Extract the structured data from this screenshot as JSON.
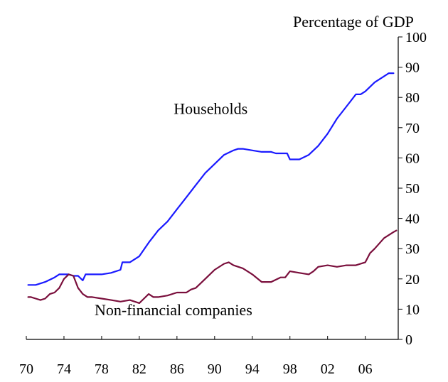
{
  "chart_data": {
    "type": "line",
    "title": "",
    "ylabel": "Percentage of GDP",
    "xlabel": "",
    "ylim": [
      0,
      100
    ],
    "y_ticks": [
      0,
      10,
      20,
      30,
      40,
      50,
      60,
      70,
      80,
      90,
      100
    ],
    "y_axis_side": "right",
    "x_range": [
      1970,
      2009.5
    ],
    "x_ticks": [
      {
        "year": 1970,
        "label": "70"
      },
      {
        "year": 1974,
        "label": "74"
      },
      {
        "year": 1978,
        "label": "78"
      },
      {
        "year": 1982,
        "label": "82"
      },
      {
        "year": 1986,
        "label": "86"
      },
      {
        "year": 1990,
        "label": "90"
      },
      {
        "year": 1994,
        "label": "94"
      },
      {
        "year": 1998,
        "label": "98"
      },
      {
        "year": 2002,
        "label": "02"
      },
      {
        "year": 2006,
        "label": "06"
      }
    ],
    "grid": false,
    "series": [
      {
        "name": "Households",
        "color": "#1a1aff",
        "points": [
          [
            1970.2,
            18
          ],
          [
            1971,
            18
          ],
          [
            1972,
            19
          ],
          [
            1973,
            20.5
          ],
          [
            1973.5,
            21.5
          ],
          [
            1974.5,
            21.5
          ],
          [
            1975,
            21
          ],
          [
            1975.5,
            21
          ],
          [
            1976,
            19.5
          ],
          [
            1976.3,
            21.5
          ],
          [
            1977,
            21.5
          ],
          [
            1978,
            21.5
          ],
          [
            1979,
            22
          ],
          [
            1980,
            23
          ],
          [
            1980.2,
            25.5
          ],
          [
            1981,
            25.5
          ],
          [
            1982,
            27.5
          ],
          [
            1983,
            32
          ],
          [
            1984,
            36
          ],
          [
            1985,
            39
          ],
          [
            1986,
            43
          ],
          [
            1987,
            47
          ],
          [
            1988,
            51
          ],
          [
            1989,
            55
          ],
          [
            1990,
            58
          ],
          [
            1991,
            61
          ],
          [
            1992,
            62.5
          ],
          [
            1992.5,
            63
          ],
          [
            1993,
            63
          ],
          [
            1994,
            62.5
          ],
          [
            1995,
            62
          ],
          [
            1996,
            62
          ],
          [
            1996.5,
            61.5
          ],
          [
            1997,
            61.5
          ],
          [
            1997.7,
            61.5
          ],
          [
            1998,
            59.5
          ],
          [
            1999,
            59.5
          ],
          [
            2000,
            61
          ],
          [
            2001,
            64
          ],
          [
            2002,
            68
          ],
          [
            2003,
            73
          ],
          [
            2004,
            77
          ],
          [
            2005,
            81
          ],
          [
            2005.5,
            81
          ],
          [
            2006,
            82
          ],
          [
            2007,
            85
          ],
          [
            2008,
            87
          ],
          [
            2008.5,
            88
          ],
          [
            2009,
            88
          ]
        ]
      },
      {
        "name": "Non-financial companies",
        "color": "#7a0f3c",
        "points": [
          [
            1970.2,
            14
          ],
          [
            1970.5,
            14
          ],
          [
            1971,
            13.5
          ],
          [
            1971.5,
            13
          ],
          [
            1972,
            13.5
          ],
          [
            1972.5,
            15
          ],
          [
            1973,
            15.5
          ],
          [
            1973.5,
            17
          ],
          [
            1974,
            20
          ],
          [
            1974.5,
            21.5
          ],
          [
            1975,
            21
          ],
          [
            1975.5,
            17
          ],
          [
            1976,
            15
          ],
          [
            1976.5,
            14
          ],
          [
            1977,
            14
          ],
          [
            1978,
            13.5
          ],
          [
            1979,
            13
          ],
          [
            1980,
            12.5
          ],
          [
            1981,
            13
          ],
          [
            1982,
            12
          ],
          [
            1982.5,
            13.5
          ],
          [
            1983,
            15
          ],
          [
            1983.5,
            14
          ],
          [
            1984,
            14
          ],
          [
            1985,
            14.5
          ],
          [
            1986,
            15.5
          ],
          [
            1987,
            15.5
          ],
          [
            1987.5,
            16.5
          ],
          [
            1988,
            17
          ],
          [
            1989,
            20
          ],
          [
            1990,
            23
          ],
          [
            1991,
            25
          ],
          [
            1991.5,
            25.5
          ],
          [
            1992,
            24.5
          ],
          [
            1993,
            23.5
          ],
          [
            1994,
            21.5
          ],
          [
            1995,
            19
          ],
          [
            1996,
            19
          ],
          [
            1997,
            20.5
          ],
          [
            1997.5,
            20.5
          ],
          [
            1998,
            22.5
          ],
          [
            1999,
            22
          ],
          [
            2000,
            21.5
          ],
          [
            2000.5,
            22.5
          ],
          [
            2001,
            24
          ],
          [
            2002,
            24.5
          ],
          [
            2003,
            24
          ],
          [
            2004,
            24.5
          ],
          [
            2005,
            24.5
          ],
          [
            2006,
            25.5
          ],
          [
            2006.5,
            28.5
          ],
          [
            2007,
            30
          ],
          [
            2008,
            33.5
          ],
          [
            2009,
            35.5
          ],
          [
            2009.3,
            36
          ]
        ]
      }
    ],
    "annotations": [
      {
        "text": "Households",
        "at": [
          1993.5,
          74.5
        ]
      },
      {
        "text": "Non-financial companies",
        "at": [
          1994,
          8
        ]
      }
    ]
  }
}
